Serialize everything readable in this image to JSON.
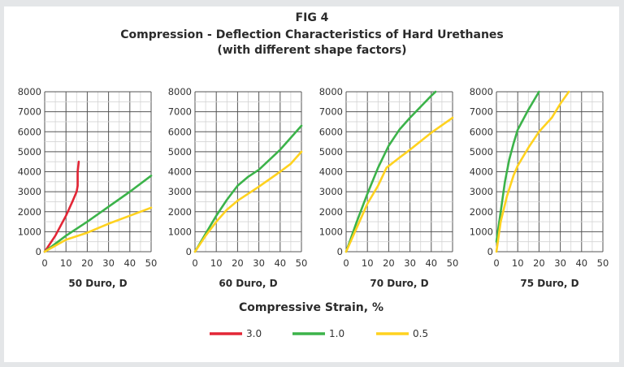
{
  "title": "FIG 4",
  "subtitle": "Compression - Deflection Characteristics of Hard Urethanes",
  "subtitle2": "(with different shape factors)",
  "shared_xlabel": "Compressive Strain, %",
  "chart_data": [
    {
      "type": "line",
      "xlabel": "50 Duro, D",
      "xlim": [
        0,
        50
      ],
      "ylim": [
        0,
        8000
      ],
      "xticks": [
        0,
        10,
        20,
        30,
        40,
        50
      ],
      "yticks": [
        0,
        1000,
        2000,
        3000,
        4000,
        5000,
        6000,
        7000,
        8000
      ],
      "grid": true,
      "series": [
        {
          "name": "3.0",
          "color": "#e32636",
          "x": [
            0,
            5,
            10,
            13,
            15,
            15.5,
            15.5,
            16
          ],
          "y": [
            0,
            800,
            1800,
            2500,
            3000,
            3300,
            4000,
            4500
          ]
        },
        {
          "name": "1.0",
          "color": "#3cb34a",
          "x": [
            0,
            10,
            20,
            30,
            40,
            50
          ],
          "y": [
            0,
            800,
            1500,
            2250,
            3000,
            3800
          ]
        },
        {
          "name": "0.5",
          "color": "#ffd21f",
          "x": [
            0,
            10,
            20,
            30,
            40,
            50
          ],
          "y": [
            0,
            600,
            950,
            1400,
            1800,
            2200
          ]
        }
      ]
    },
    {
      "type": "line",
      "xlabel": "60 Duro, D",
      "xlim": [
        0,
        50
      ],
      "ylim": [
        0,
        8000
      ],
      "xticks": [
        0,
        10,
        20,
        30,
        40,
        50
      ],
      "yticks": [
        0,
        1000,
        2000,
        3000,
        4000,
        5000,
        6000,
        7000,
        8000
      ],
      "grid": true,
      "series": [
        {
          "name": "1.0",
          "color": "#3cb34a",
          "x": [
            0,
            5,
            10,
            15,
            20,
            25,
            30,
            40,
            50
          ],
          "y": [
            0,
            900,
            1800,
            2600,
            3300,
            3750,
            4100,
            5100,
            6300
          ]
        },
        {
          "name": "0.5",
          "color": "#ffd21f",
          "x": [
            0,
            5,
            10,
            15,
            20,
            30,
            40,
            45,
            50
          ],
          "y": [
            0,
            800,
            1500,
            2100,
            2550,
            3250,
            4000,
            4400,
            5000
          ]
        }
      ]
    },
    {
      "type": "line",
      "xlabel": "70 Duro, D",
      "xlim": [
        0,
        50
      ],
      "ylim": [
        0,
        8000
      ],
      "xticks": [
        0,
        10,
        20,
        30,
        40,
        50
      ],
      "yticks": [
        0,
        1000,
        2000,
        3000,
        4000,
        5000,
        6000,
        7000,
        8000
      ],
      "grid": true,
      "series": [
        {
          "name": "1.0",
          "color": "#3cb34a",
          "x": [
            0,
            5,
            10,
            15,
            20,
            25,
            30,
            40,
            42
          ],
          "y": [
            0,
            1500,
            2900,
            4200,
            5300,
            6100,
            6700,
            7800,
            8000
          ]
        },
        {
          "name": "0.5",
          "color": "#ffd21f",
          "x": [
            0,
            5,
            10,
            15,
            19,
            25,
            30,
            40,
            50
          ],
          "y": [
            0,
            1200,
            2400,
            3300,
            4200,
            4700,
            5100,
            5950,
            6700
          ]
        }
      ]
    },
    {
      "type": "line",
      "xlabel": "75 Duro, D",
      "xlim": [
        0,
        50
      ],
      "ylim": [
        0,
        8000
      ],
      "xticks": [
        0,
        10,
        20,
        30,
        40,
        50
      ],
      "yticks": [
        0,
        1000,
        2000,
        3000,
        4000,
        5000,
        6000,
        7000,
        8000
      ],
      "grid": true,
      "series": [
        {
          "name": "1.0",
          "color": "#3cb34a",
          "x": [
            0,
            2,
            4,
            6,
            8,
            10,
            15,
            20
          ],
          "y": [
            500,
            2000,
            3500,
            4600,
            5400,
            6100,
            7100,
            8000
          ]
        },
        {
          "name": "0.5",
          "color": "#ffd21f",
          "x": [
            0,
            2,
            5,
            8,
            10,
            15,
            20,
            26,
            30,
            34
          ],
          "y": [
            0,
            1500,
            2800,
            3800,
            4300,
            5200,
            6000,
            6700,
            7400,
            8000
          ]
        }
      ]
    }
  ],
  "legend": {
    "placement": "bottom",
    "items": [
      {
        "label": "3.0",
        "color": "#e32636"
      },
      {
        "label": "1.0",
        "color": "#3cb34a"
      },
      {
        "label": "0.5",
        "color": "#ffd21f"
      }
    ]
  }
}
